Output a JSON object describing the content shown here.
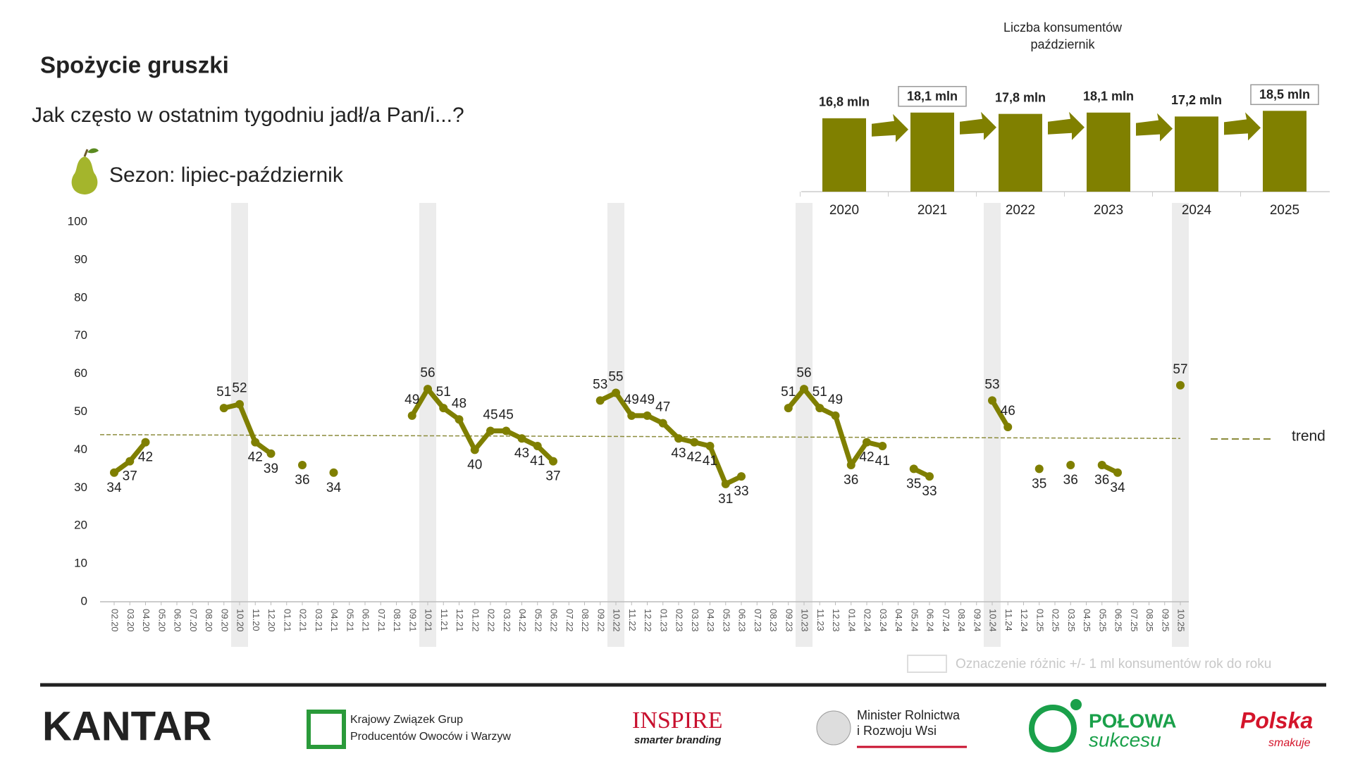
{
  "header": {
    "title": "Spożycie gruszki",
    "subtitle": "Jak często w ostatnim tygodniu jadł/a Pan/i...?",
    "season": "Sezon: lipiec-październik"
  },
  "chart_data": [
    {
      "type": "line",
      "categories": [
        "02.20",
        "03.20",
        "04.20",
        "05.20",
        "06.20",
        "07.20",
        "08.20",
        "09.20",
        "10.20",
        "11.20",
        "12.20",
        "01.21",
        "02.21",
        "03.21",
        "04.21",
        "05.21",
        "06.21",
        "07.21",
        "08.21",
        "09.21",
        "10.21",
        "11.21",
        "12.21",
        "01.22",
        "02.22",
        "03.22",
        "04.22",
        "05.22",
        "06.22",
        "07.22",
        "08.22",
        "09.22",
        "10.22",
        "11.22",
        "12.22",
        "01.23",
        "02.23",
        "03.23",
        "04.23",
        "05.23",
        "06.23",
        "07.23",
        "08.23",
        "09.23",
        "10.23",
        "11.23",
        "12.23",
        "01.24",
        "02.24",
        "03.24",
        "04.24",
        "05.24",
        "06.24",
        "07.24",
        "08.24",
        "09.24",
        "10.24",
        "11.24",
        "12.24",
        "01.25",
        "02.25",
        "03.25",
        "04.25",
        "05.25",
        "06.25",
        "07.25",
        "08.25",
        "09.25",
        "10.25"
      ],
      "values": [
        34,
        37,
        42,
        null,
        null,
        null,
        null,
        51,
        52,
        42,
        39,
        null,
        36,
        null,
        34,
        null,
        null,
        null,
        null,
        49,
        56,
        51,
        48,
        40,
        45,
        45,
        43,
        41,
        37,
        null,
        null,
        53,
        55,
        49,
        49,
        47,
        43,
        42,
        41,
        31,
        33,
        null,
        null,
        51,
        56,
        51,
        49,
        36,
        42,
        41,
        null,
        35,
        33,
        null,
        null,
        null,
        53,
        46,
        null,
        35,
        null,
        36,
        null,
        36,
        34,
        null,
        null,
        null,
        57
      ],
      "color": "#7f7f00",
      "ylim": [
        0,
        100
      ],
      "yticks": [
        0,
        10,
        20,
        30,
        40,
        50,
        60,
        70,
        80,
        90,
        100
      ],
      "trend": {
        "name": "trend",
        "values": [
          44,
          43
        ],
        "color": "#8c8c3c"
      },
      "highlight": [
        "10.20",
        "10.21",
        "10.22",
        "10.23",
        "10.24",
        "10.25"
      ],
      "highlight_note": "Oznaczenie różnic +/- 1 ml konsumentów rok do roku"
    },
    {
      "type": "bar",
      "title": "Liczba konsumentów",
      "subtitle": "październik",
      "categories": [
        "2020",
        "2021",
        "2022",
        "2023",
        "2024",
        "2025"
      ],
      "values": [
        16.8,
        18.1,
        17.8,
        18.1,
        17.2,
        18.5
      ],
      "value_labels": [
        "16,8 mln",
        "18,1 mln",
        "17,8 mln",
        "18,1 mln",
        "17,2 mln",
        "18,5 mln"
      ],
      "boxed": [
        false,
        true,
        false,
        false,
        false,
        true
      ],
      "color": "#808000",
      "ylim": [
        0,
        20
      ]
    }
  ],
  "footer": {
    "logos": [
      "KANTAR",
      "Krajowy Związek Grup",
      "Producentów Owoców i Warzyw",
      "INSPIRE",
      "smarter branding",
      "Minister Rolnictwa",
      "i Rozwoju Wsi",
      "POŁOWA",
      "sukcesu",
      "Polska",
      "smakuje"
    ]
  }
}
